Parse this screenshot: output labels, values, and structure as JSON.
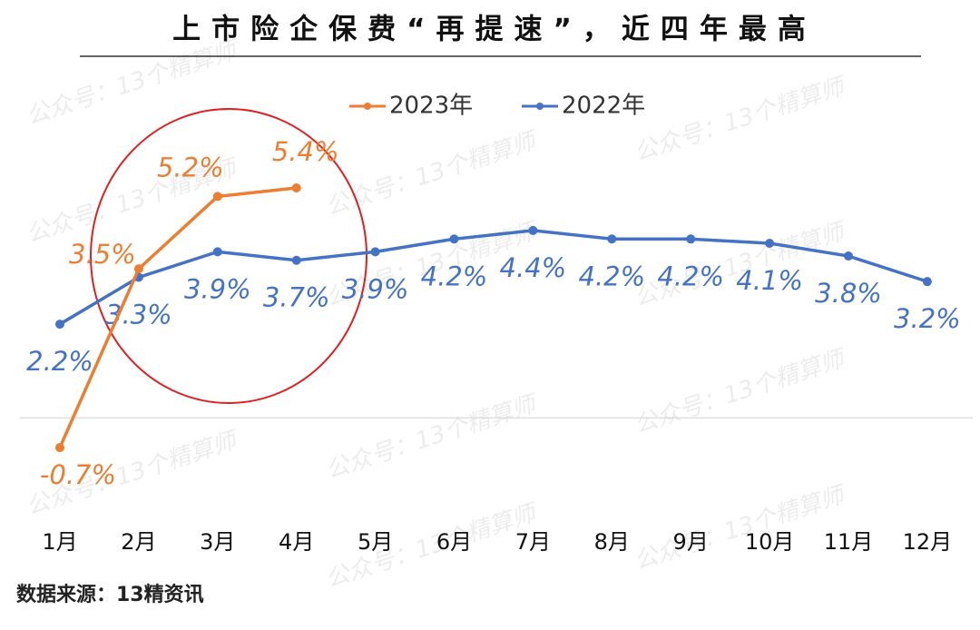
{
  "chart_data": {
    "type": "line",
    "title": "上市险企保费“再提速”，近四年最高",
    "source": "数据来源：13精资讯",
    "watermark": "公众号：13个精算师",
    "categories": [
      "1月",
      "2月",
      "3月",
      "4月",
      "5月",
      "6月",
      "7月",
      "8月",
      "9月",
      "10月",
      "11月",
      "12月"
    ],
    "series": [
      {
        "name": "2023年",
        "color": "#ed7d31",
        "values": [
          -0.7,
          3.5,
          5.2,
          5.4,
          null,
          null,
          null,
          null,
          null,
          null,
          null,
          null
        ],
        "value_labels": [
          "-0.7%",
          "3.5%",
          "5.2%",
          "5.4%",
          null,
          null,
          null,
          null,
          null,
          null,
          null,
          null
        ]
      },
      {
        "name": "2022年",
        "color": "#4472c4",
        "values": [
          2.2,
          3.3,
          3.9,
          3.7,
          3.9,
          4.2,
          4.4,
          4.2,
          4.2,
          4.1,
          3.8,
          3.2
        ],
        "value_labels": [
          "2.2%",
          "3.3%",
          "3.9%",
          "3.7%",
          "3.9%",
          "4.2%",
          "4.4%",
          "4.2%",
          "4.2%",
          "4.1%",
          "3.8%",
          "3.2%"
        ]
      }
    ],
    "ylim": [
      -2,
      7
    ],
    "legend": "top"
  }
}
